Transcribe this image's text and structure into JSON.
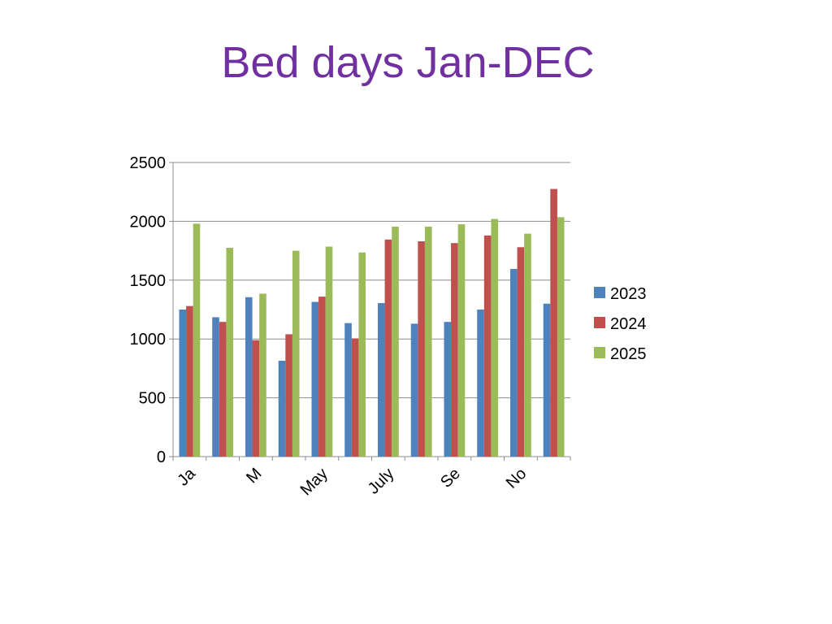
{
  "chart_data": {
    "type": "bar",
    "title": "Bed days Jan-DEC",
    "categories": [
      "Ja",
      "",
      "M",
      "",
      "May",
      "",
      "July",
      "",
      "Se",
      "",
      "No",
      ""
    ],
    "series": [
      {
        "name": "2023",
        "color": "#4f81bd",
        "values": [
          1250,
          1185,
          1355,
          815,
          1315,
          1135,
          1305,
          1130,
          1145,
          1250,
          1595,
          1300
        ]
      },
      {
        "name": "2024",
        "color": "#c0504d",
        "values": [
          1280,
          1145,
          990,
          1040,
          1360,
          1005,
          1845,
          1830,
          1815,
          1880,
          1780,
          2275
        ]
      },
      {
        "name": "2025",
        "color": "#9bbb59",
        "values": [
          1980,
          1775,
          1385,
          1750,
          1785,
          1735,
          1955,
          1955,
          1975,
          2020,
          1895,
          2035
        ]
      }
    ],
    "ylim": [
      0,
      2500
    ],
    "yticks": [
      "0",
      "500",
      "1000",
      "1500",
      "2000",
      "2500"
    ],
    "grid": true,
    "legend": "right"
  }
}
